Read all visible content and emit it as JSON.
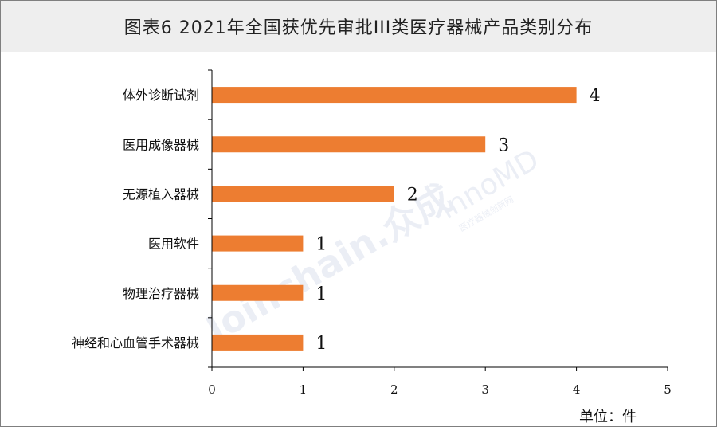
{
  "title": "图表6  2021年全国获优先审批III类医疗器械产品类别分布",
  "unit_label": "单位：件",
  "watermark": {
    "brand1": "Joinchain.众成",
    "brand2": "innoMD",
    "brand2_sub": "医疗器械创新网"
  },
  "colors": {
    "bar": "#ed7d31",
    "title_bg": "#eeeeee",
    "axis": "#000000"
  },
  "chart_data": {
    "type": "bar",
    "orientation": "horizontal",
    "categories": [
      "体外诊断试剂",
      "医用成像器械",
      "无源植入器械",
      "医用软件",
      "物理治疗器械",
      "神经和心血管手术器械"
    ],
    "values": [
      4,
      3,
      2,
      1,
      1,
      1
    ],
    "xlim": [
      0,
      5
    ],
    "xticks": [
      0,
      1,
      2,
      3,
      4,
      5
    ],
    "grid": false,
    "legend": "none"
  }
}
